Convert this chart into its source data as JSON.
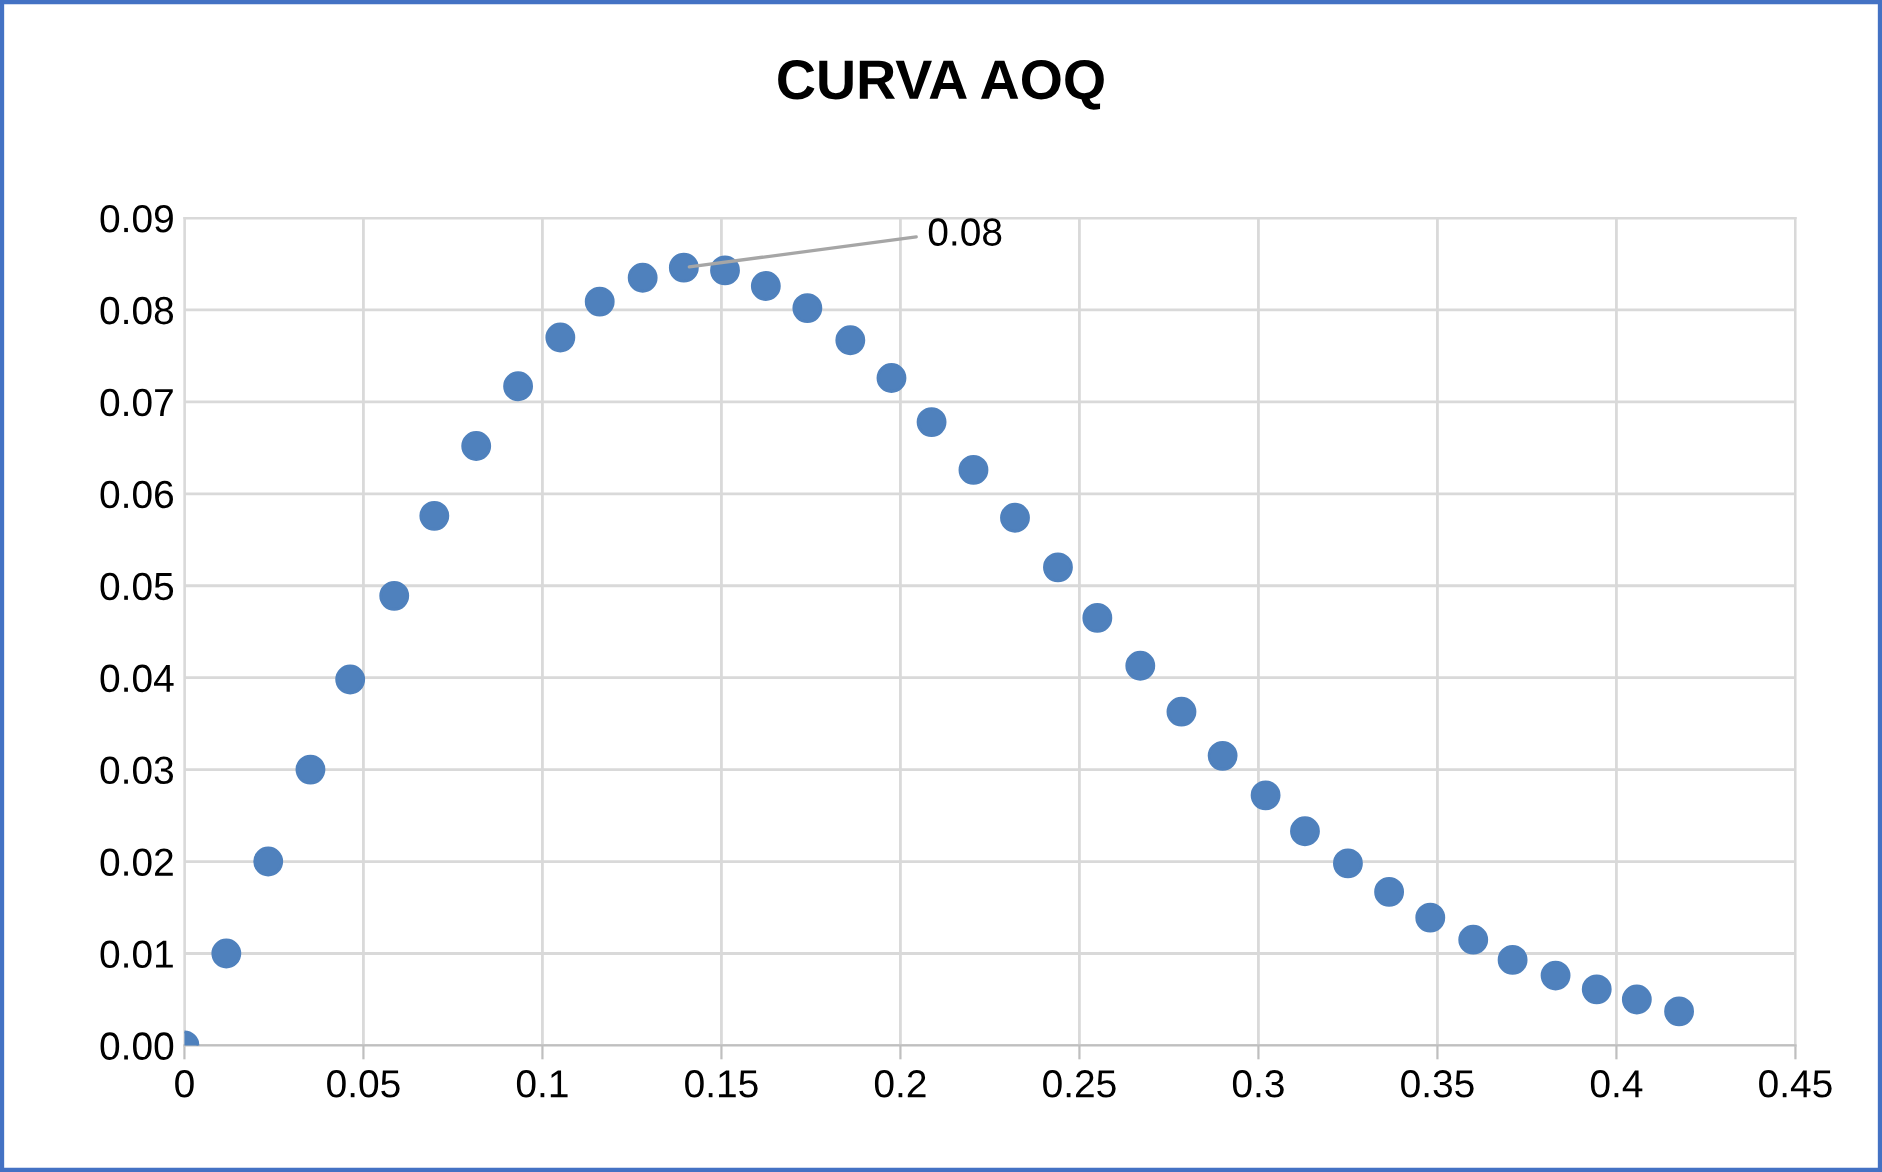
{
  "chart_data": {
    "type": "scatter",
    "title": "CURVA AOQ",
    "x": [
      0,
      0.0117,
      0.0234,
      0.0352,
      0.0463,
      0.0586,
      0.0698,
      0.0815,
      0.0932,
      0.105,
      0.116,
      0.128,
      0.1395,
      0.151,
      0.1624,
      0.174,
      0.186,
      0.1975,
      0.2087,
      0.2204,
      0.232,
      0.244,
      0.255,
      0.267,
      0.2785,
      0.29,
      0.302,
      0.313,
      0.325,
      0.3365,
      0.348,
      0.36,
      0.371,
      0.383,
      0.3945,
      0.4057,
      0.4175
    ],
    "series": [
      {
        "color": "#4f81bd",
        "values": [
          0,
          0.01,
          0.02,
          0.03,
          0.0398,
          0.0489,
          0.0576,
          0.0652,
          0.0717,
          0.077,
          0.0809,
          0.0835,
          0.0846,
          0.0843,
          0.0826,
          0.0802,
          0.0767,
          0.0726,
          0.0678,
          0.0626,
          0.0574,
          0.052,
          0.0465,
          0.0413,
          0.0363,
          0.0315,
          0.0272,
          0.0233,
          0.0198,
          0.0167,
          0.0139,
          0.0115,
          0.0093,
          0.0076,
          0.0061,
          0.005,
          0.0037
        ]
      }
    ],
    "annotations": [
      {
        "text": "0.08",
        "x": 0.1395,
        "y": 0.0846
      }
    ],
    "xlim": [
      0,
      0.45
    ],
    "xticks": [
      0,
      0.05,
      0.1,
      0.15,
      0.2,
      0.25,
      0.3,
      0.35,
      0.4,
      0.45
    ],
    "ylim": [
      0,
      0.09
    ],
    "yticks": [
      {
        "value": 0,
        "label": "0.00"
      },
      0.01,
      0.02,
      0.03,
      0.04,
      0.05,
      0.06,
      0.07,
      0.08,
      0.09
    ],
    "grid": true,
    "marker": "circle",
    "legend": false
  }
}
